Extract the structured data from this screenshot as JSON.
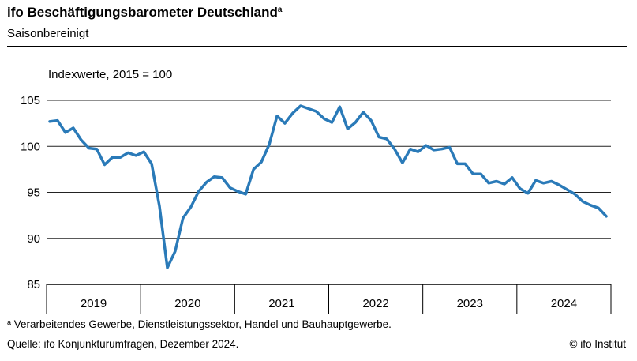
{
  "header": {
    "title": "ifo Beschäftigungsbarometer Deutschland",
    "title_marker": "a",
    "subtitle": "Saisonbereinigt"
  },
  "footer": {
    "footnote_marker": "a",
    "footnote": "Verarbeitendes Gewerbe, Dienstleistungssektor, Handel und Bauhauptgewerbe.",
    "source": "Quelle: ifo Konjunkturumfragen, Dezember 2024.",
    "copyright": "© ifo Institut"
  },
  "chart_data": {
    "type": "line",
    "ylabel": "Indexwerte, 2015 = 100",
    "ylim": [
      85,
      105
    ],
    "yticks": [
      85,
      90,
      95,
      100,
      105
    ],
    "grid": "horizontal",
    "color": "#2a7ab8",
    "year_labels": [
      "2019",
      "2020",
      "2021",
      "2022",
      "2023",
      "2024"
    ],
    "x_start": "2019-01",
    "x_end": "2024-12",
    "series": [
      {
        "values": [
          102.7,
          102.8,
          101.5,
          102.0,
          100.7,
          99.8,
          99.7,
          98.0,
          98.8,
          98.8,
          99.3,
          99.0,
          99.4,
          98.1,
          93.5,
          86.8,
          88.6,
          92.2,
          93.4,
          95.1,
          96.1,
          96.7,
          96.6,
          95.5,
          95.1,
          94.8,
          97.5,
          98.3,
          100.2,
          103.3,
          102.5,
          103.6,
          104.4,
          104.1,
          103.8,
          103.0,
          102.6,
          104.3,
          101.9,
          102.6,
          103.7,
          102.8,
          101.0,
          100.8,
          99.7,
          98.2,
          99.7,
          99.4,
          100.1,
          99.6,
          99.7,
          99.9,
          98.1,
          98.1,
          97.0,
          97.0,
          96.0,
          96.2,
          95.9,
          96.6,
          95.4,
          94.9,
          96.3,
          96.0,
          96.2,
          95.8,
          95.3,
          94.8,
          94.0,
          93.6,
          93.3,
          92.4
        ]
      }
    ]
  }
}
